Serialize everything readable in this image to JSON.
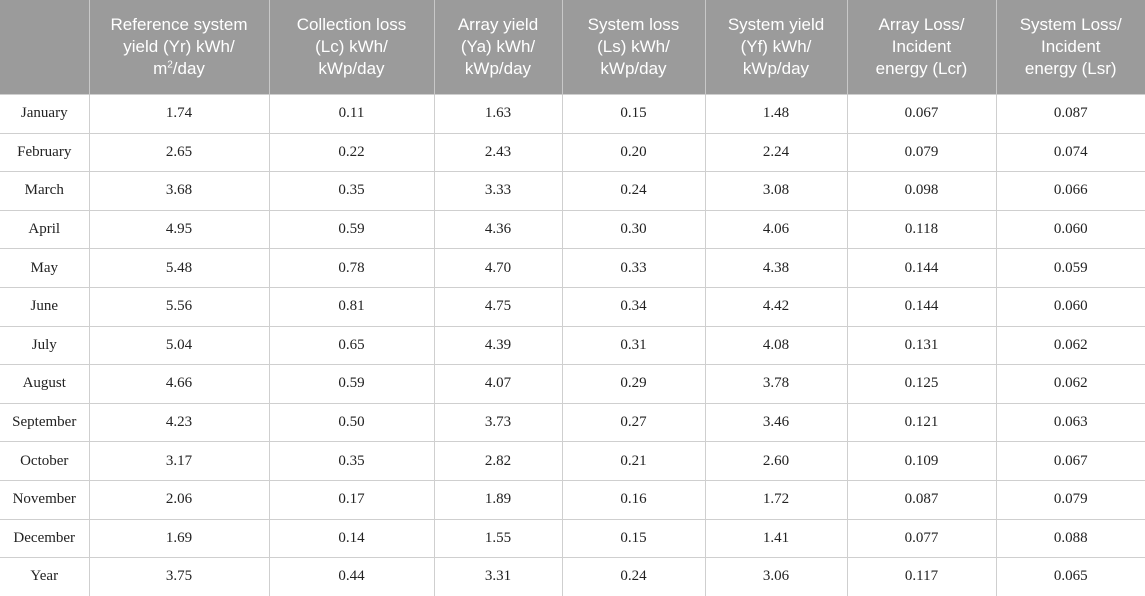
{
  "table": {
    "headers": [
      {
        "line1": "",
        "line2": "",
        "line3_pre": "",
        "line3_sup": "",
        "line3_post": ""
      },
      {
        "line1": "Reference system",
        "line2": "yield (Yr) kWh/",
        "line3_pre": "m",
        "line3_sup": "2",
        "line3_post": "/day"
      },
      {
        "line1": "Collection loss",
        "line2": "(Lc) kWh/",
        "line3_pre": "kWp/day",
        "line3_sup": "",
        "line3_post": ""
      },
      {
        "line1": "Array yield",
        "line2": "(Ya) kWh/",
        "line3_pre": "kWp/day",
        "line3_sup": "",
        "line3_post": ""
      },
      {
        "line1": "System loss",
        "line2": "(Ls) kWh/",
        "line3_pre": "kWp/day",
        "line3_sup": "",
        "line3_post": ""
      },
      {
        "line1": "System yield",
        "line2": "(Yf) kWh/",
        "line3_pre": "kWp/day",
        "line3_sup": "",
        "line3_post": ""
      },
      {
        "line1": "Array Loss/",
        "line2": "Incident",
        "line3_pre": "energy (Lcr)",
        "line3_sup": "",
        "line3_post": ""
      },
      {
        "line1": "System Loss/",
        "line2": "Incident",
        "line3_pre": "energy (Lsr)",
        "line3_sup": "",
        "line3_post": ""
      }
    ],
    "rows": [
      [
        "January",
        "1.74",
        "0.11",
        "1.63",
        "0.15",
        "1.48",
        "0.067",
        "0.087"
      ],
      [
        "February",
        "2.65",
        "0.22",
        "2.43",
        "0.20",
        "2.24",
        "0.079",
        "0.074"
      ],
      [
        "March",
        "3.68",
        "0.35",
        "3.33",
        "0.24",
        "3.08",
        "0.098",
        "0.066"
      ],
      [
        "April",
        "4.95",
        "0.59",
        "4.36",
        "0.30",
        "4.06",
        "0.118",
        "0.060"
      ],
      [
        "May",
        "5.48",
        "0.78",
        "4.70",
        "0.33",
        "4.38",
        "0.144",
        "0.059"
      ],
      [
        "June",
        "5.56",
        "0.81",
        "4.75",
        "0.34",
        "4.42",
        "0.144",
        "0.060"
      ],
      [
        "July",
        "5.04",
        "0.65",
        "4.39",
        "0.31",
        "4.08",
        "0.131",
        "0.062"
      ],
      [
        "August",
        "4.66",
        "0.59",
        "4.07",
        "0.29",
        "3.78",
        "0.125",
        "0.062"
      ],
      [
        "September",
        "4.23",
        "0.50",
        "3.73",
        "0.27",
        "3.46",
        "0.121",
        "0.063"
      ],
      [
        "October",
        "3.17",
        "0.35",
        "2.82",
        "0.21",
        "2.60",
        "0.109",
        "0.067"
      ],
      [
        "November",
        "2.06",
        "0.17",
        "1.89",
        "0.16",
        "1.72",
        "0.087",
        "0.079"
      ],
      [
        "December",
        "1.69",
        "0.14",
        "1.55",
        "0.15",
        "1.41",
        "0.077",
        "0.088"
      ],
      [
        "Year",
        "3.75",
        "0.44",
        "3.31",
        "0.24",
        "3.06",
        "0.117",
        "0.065"
      ]
    ]
  }
}
